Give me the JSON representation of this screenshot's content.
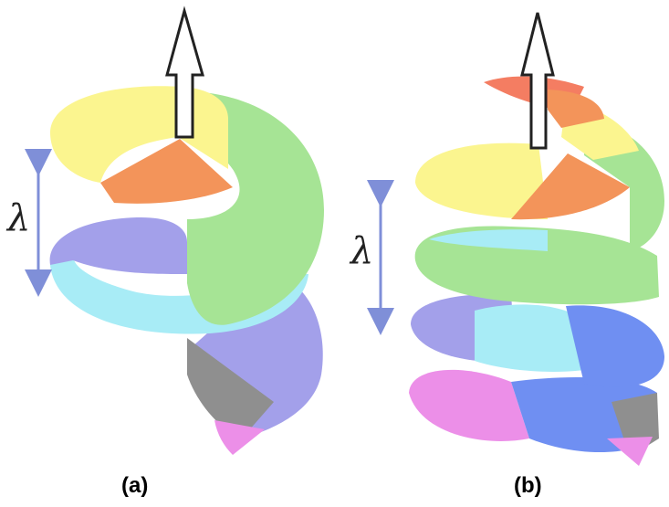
{
  "panels": [
    {
      "caption": "(a)",
      "symbol": "λ"
    },
    {
      "caption": "(b)",
      "symbol": "λ"
    }
  ],
  "colors": {
    "yellow": "#fbf58f",
    "orange": "#f3945a",
    "green": "#a6e495",
    "violet": "#a3a0ea",
    "cyan": "#a8ecf6",
    "grey": "#8f8f8f",
    "pink": "#ec8fe8",
    "blue": "#6f8ff2",
    "red": "#f47d62",
    "arrow": "#7f8fd8"
  }
}
